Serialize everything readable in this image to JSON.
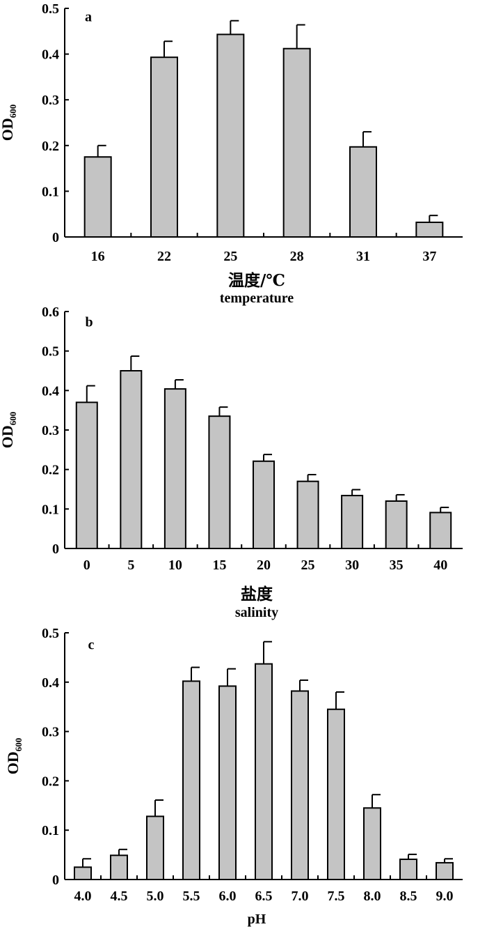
{
  "chart_data": [
    {
      "type": "bar",
      "panel_label": "a",
      "categories": [
        "16",
        "22",
        "25",
        "28",
        "31",
        "37"
      ],
      "values": [
        0.175,
        0.393,
        0.443,
        0.412,
        0.197,
        0.032
      ],
      "errors": [
        0.025,
        0.035,
        0.03,
        0.052,
        0.033,
        0.015
      ],
      "ylabel_main": "OD",
      "ylabel_sub": "600",
      "xlabel": "温度/℃",
      "xlabel_en": "temperature",
      "ylim": [
        0,
        0.5
      ],
      "yticks": [
        0,
        0.1,
        0.2,
        0.3,
        0.4,
        0.5
      ],
      "ytick_labels": [
        "0",
        "0.1",
        "0.2",
        "0.3",
        "0.4",
        "0.5"
      ]
    },
    {
      "type": "bar",
      "panel_label": "b",
      "categories": [
        "0",
        "5",
        "10",
        "15",
        "20",
        "25",
        "30",
        "35",
        "40"
      ],
      "values": [
        0.37,
        0.45,
        0.404,
        0.335,
        0.221,
        0.17,
        0.134,
        0.12,
        0.091
      ],
      "errors": [
        0.042,
        0.037,
        0.023,
        0.023,
        0.017,
        0.017,
        0.015,
        0.016,
        0.013
      ],
      "ylabel_main": "OD",
      "ylabel_sub": "600",
      "xlabel": "盐度",
      "xlabel_en": "salinity",
      "ylim": [
        0,
        0.6
      ],
      "yticks": [
        0,
        0.1,
        0.2,
        0.3,
        0.4,
        0.5,
        0.6
      ],
      "ytick_labels": [
        "0",
        "0.1",
        "0.2",
        "0.3",
        "0.4",
        "0.5",
        "0.6"
      ]
    },
    {
      "type": "bar",
      "panel_label": "c",
      "categories": [
        "4.0",
        "4.5",
        "5.0",
        "5.5",
        "6.0",
        "6.5",
        "7.0",
        "7.5",
        "8.0",
        "8.5",
        "9.0"
      ],
      "values": [
        0.025,
        0.049,
        0.128,
        0.402,
        0.392,
        0.437,
        0.382,
        0.345,
        0.145,
        0.041,
        0.034
      ],
      "errors": [
        0.017,
        0.012,
        0.033,
        0.028,
        0.035,
        0.045,
        0.022,
        0.035,
        0.027,
        0.01,
        0.008
      ],
      "ylabel_main": "OD",
      "ylabel_sub": "600",
      "xlabel": "pH",
      "ylim": [
        0,
        0.5
      ],
      "yticks": [
        0,
        0.1,
        0.2,
        0.3,
        0.4,
        0.5
      ],
      "ytick_labels": [
        "0",
        "0.1",
        "0.2",
        "0.3",
        "0.4",
        "0.5"
      ]
    }
  ]
}
